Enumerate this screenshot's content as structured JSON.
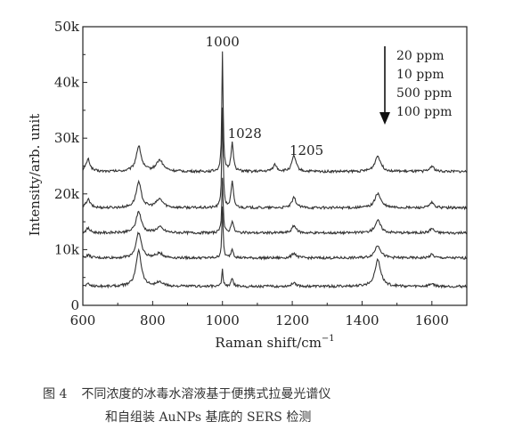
{
  "chart_data": {
    "type": "line",
    "xlabel": "Raman shift/cm",
    "xlabel_sup": "−1",
    "ylabel": "Intensity/arb. unit",
    "xlim": [
      600,
      1700
    ],
    "ylim": [
      0,
      50000
    ],
    "x_ticks": [
      "600",
      "800",
      "1000",
      "1200",
      "1400",
      "1600"
    ],
    "x_tick_values": [
      600,
      800,
      1000,
      1200,
      1400,
      1600
    ],
    "y_ticks": [
      "0",
      "10k",
      "20k",
      "30k",
      "40k",
      "50k"
    ],
    "y_tick_values": [
      0,
      10000,
      20000,
      30000,
      40000,
      50000
    ],
    "peak_labels": [
      {
        "text": "1000",
        "x": 1000,
        "y": 46500
      },
      {
        "text": "1028",
        "x": 1028,
        "y": 30000
      },
      {
        "text": "1205",
        "x": 1205,
        "y": 27000
      }
    ],
    "legend": {
      "placement": "top-right",
      "entries": [
        "20 ppm",
        "10 ppm",
        "500 ppm",
        "100 ppm"
      ],
      "arrow": "down"
    },
    "series": [
      {
        "baseline": 24000,
        "peaks": [
          [
            615,
            2200
          ],
          [
            760,
            4500
          ],
          [
            820,
            2000
          ],
          [
            1000,
            21500
          ],
          [
            1028,
            5200
          ],
          [
            1150,
            1200
          ],
          [
            1205,
            2800
          ],
          [
            1445,
            2800
          ],
          [
            1600,
            1000
          ]
        ]
      },
      {
        "baseline": 17500,
        "peaks": [
          [
            615,
            1500
          ],
          [
            760,
            4500
          ],
          [
            820,
            1500
          ],
          [
            1000,
            18000
          ],
          [
            1028,
            4600
          ],
          [
            1205,
            1800
          ],
          [
            1445,
            2600
          ],
          [
            1600,
            900
          ]
        ]
      },
      {
        "baseline": 13000,
        "peaks": [
          [
            615,
            800
          ],
          [
            760,
            3800
          ],
          [
            820,
            1000
          ],
          [
            1000,
            10000
          ],
          [
            1028,
            2200
          ],
          [
            1205,
            1300
          ],
          [
            1445,
            2200
          ],
          [
            1600,
            800
          ]
        ]
      },
      {
        "baseline": 8500,
        "peaks": [
          [
            615,
            500
          ],
          [
            760,
            4500
          ],
          [
            820,
            800
          ],
          [
            1000,
            9000
          ],
          [
            1028,
            1600
          ],
          [
            1205,
            900
          ],
          [
            1445,
            2300
          ],
          [
            1600,
            600
          ]
        ]
      },
      {
        "baseline": 3400,
        "peaks": [
          [
            615,
            400
          ],
          [
            760,
            6500
          ],
          [
            820,
            700
          ],
          [
            1000,
            3000
          ],
          [
            1028,
            1300
          ],
          [
            1205,
            700
          ],
          [
            1445,
            4800
          ],
          [
            1600,
            500
          ]
        ]
      }
    ]
  },
  "caption": {
    "figure_label": "图 4",
    "line1": "不同浓度的冰毒水溶液基于便携式拉曼光谱仪",
    "line2": "和自组装 AuNPs 基底的 SERS 检测"
  }
}
